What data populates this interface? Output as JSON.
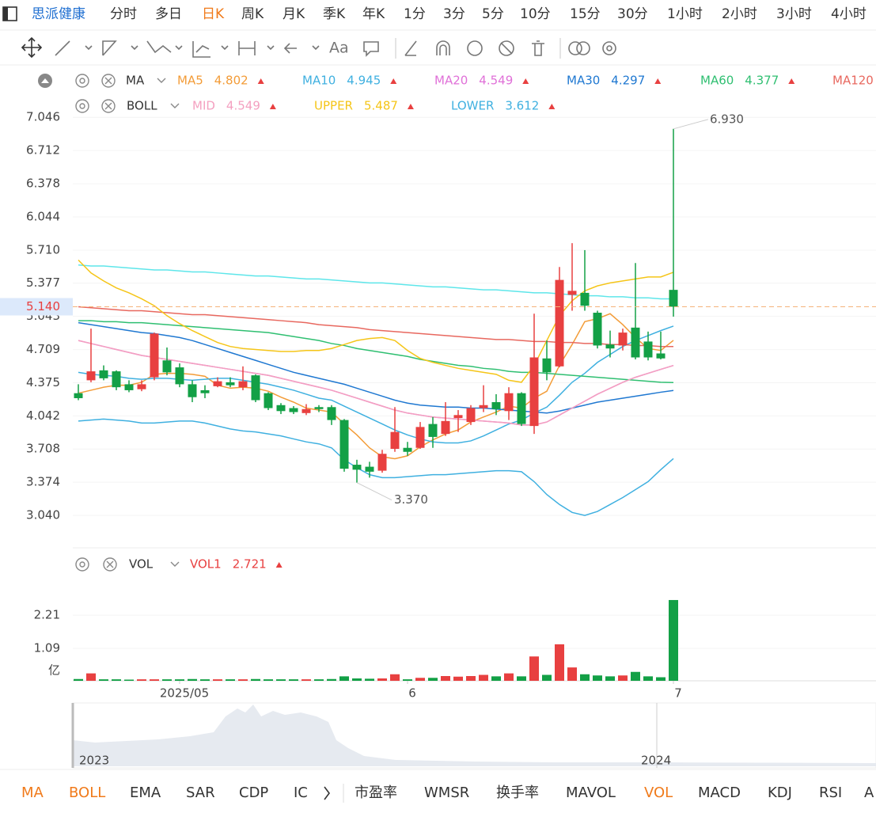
{
  "nav": {
    "title": "思派健康",
    "tabs": [
      "分时",
      "多日",
      "日K",
      "周K",
      "月K",
      "季K",
      "年K",
      "1分",
      "3分",
      "5分",
      "10分",
      "15分",
      "30分",
      "1小时",
      "2小时",
      "3小时",
      "4小时"
    ],
    "active": 2
  },
  "toolbar_text": "Aa",
  "indicator_tabs": {
    "items": [
      "MA",
      "BOLL",
      "EMA",
      "SAR",
      "CDP",
      "IC",
      "市盈率",
      "WMSR",
      "换手率",
      "MAVOL",
      "VOL",
      "MACD",
      "KDJ",
      "RSI",
      "A"
    ],
    "active": [
      0,
      1,
      10
    ]
  },
  "navigator": {
    "labels": [
      "2023",
      "2024"
    ]
  },
  "chart_data": [
    {
      "type": "candlestick",
      "up_color": "#e84040",
      "down_color": "#13a046",
      "ylim": [
        2.73,
        7.51
      ],
      "yticks": [
        {
          "value": 3.04,
          "label": "3.040"
        },
        3.374,
        3.708,
        4.042,
        4.375,
        4.709,
        5.043,
        5.377,
        {
          "value": 5.71,
          "label": "5.710"
        },
        6.044,
        6.378,
        6.712,
        7.046
      ],
      "grid": true,
      "open": [
        4.27,
        4.4,
        4.5,
        4.49,
        4.36,
        4.31,
        4.43,
        4.6,
        4.53,
        4.36,
        4.3,
        4.34,
        4.38,
        4.33,
        4.45,
        4.27,
        4.15,
        4.12,
        4.07,
        4.13,
        4.13,
        4.0,
        3.55,
        3.53,
        3.49,
        3.71,
        3.72,
        3.72,
        3.96,
        3.86,
        4.02,
        3.98,
        4.12,
        4.18,
        4.09,
        4.27,
        3.94,
        4.62,
        4.54,
        5.26,
        5.28,
        5.08,
        4.76,
        4.75,
        4.93,
        4.79,
        4.67,
        5.31
      ],
      "high": [
        4.36,
        4.92,
        4.55,
        4.5,
        4.4,
        4.4,
        4.88,
        4.73,
        4.57,
        4.4,
        4.35,
        4.43,
        4.43,
        4.54,
        4.46,
        4.28,
        4.17,
        4.14,
        4.16,
        4.15,
        4.15,
        4.01,
        3.6,
        3.58,
        3.7,
        4.13,
        3.78,
        3.98,
        4.03,
        4.18,
        4.1,
        4.15,
        4.35,
        4.26,
        4.33,
        4.28,
        5.07,
        4.8,
        5.54,
        5.78,
        5.71,
        5.1,
        4.9,
        4.92,
        5.58,
        4.89,
        4.89,
        6.93
      ],
      "low": [
        4.2,
        4.38,
        4.4,
        4.3,
        4.28,
        4.29,
        4.4,
        4.45,
        4.33,
        4.18,
        4.22,
        4.33,
        4.33,
        4.3,
        4.18,
        4.1,
        4.06,
        4.06,
        4.05,
        4.08,
        3.95,
        3.48,
        3.37,
        3.42,
        3.47,
        3.68,
        3.64,
        3.71,
        3.72,
        3.84,
        3.88,
        3.95,
        4.08,
        4.05,
        4.0,
        3.94,
        3.86,
        4.4,
        4.53,
        5.1,
        5.1,
        4.72,
        4.63,
        4.7,
        4.61,
        4.6,
        4.61,
        5.04
      ],
      "close": [
        4.22,
        4.49,
        4.42,
        4.33,
        4.3,
        4.36,
        4.87,
        4.48,
        4.36,
        4.23,
        4.27,
        4.39,
        4.35,
        4.39,
        4.2,
        4.12,
        4.09,
        4.08,
        4.11,
        4.11,
        4.0,
        3.51,
        3.5,
        3.48,
        3.66,
        3.88,
        3.68,
        3.93,
        3.83,
        3.99,
        4.05,
        4.12,
        4.15,
        4.11,
        4.27,
        3.96,
        4.63,
        4.48,
        5.41,
        5.3,
        5.15,
        4.75,
        4.72,
        4.88,
        4.63,
        4.63,
        4.62,
        5.14
      ],
      "high_label": {
        "value": 6.93,
        "label": "6.930"
      },
      "low_label": {
        "value": 3.37,
        "label": "3.370"
      },
      "last_price": {
        "value": 5.14,
        "label": "5.140"
      },
      "indicators": [
        {
          "name": "MA",
          "series": [
            {
              "name": "MA5",
              "color": "#f39c38",
              "values": [
                4.27,
                4.3,
                4.33,
                4.35,
                4.35,
                4.38,
                4.46,
                4.47,
                4.47,
                4.46,
                4.44,
                4.35,
                4.32,
                4.33,
                4.32,
                4.29,
                4.23,
                4.18,
                4.12,
                4.1,
                4.08,
                3.96,
                3.85,
                3.72,
                3.63,
                3.61,
                3.64,
                3.73,
                3.8,
                3.86,
                3.9,
                3.98,
                4.03,
                4.08,
                4.14,
                4.12,
                4.22,
                4.29,
                4.55,
                4.76,
                4.99,
                5.02,
                5.07,
                4.96,
                4.83,
                4.72,
                4.7,
                4.802
              ]
            },
            {
              "name": "MA10",
              "color": "#3fb0e0",
              "values": [
                4.48,
                4.46,
                4.45,
                4.44,
                4.42,
                4.41,
                4.42,
                4.42,
                4.41,
                4.4,
                4.41,
                4.42,
                4.42,
                4.4,
                4.38,
                4.36,
                4.33,
                4.3,
                4.26,
                4.22,
                4.2,
                4.14,
                4.08,
                4.02,
                3.96,
                3.9,
                3.85,
                3.81,
                3.78,
                3.77,
                3.77,
                3.79,
                3.84,
                3.9,
                3.96,
                4.0,
                4.07,
                4.13,
                4.25,
                4.38,
                4.47,
                4.58,
                4.66,
                4.74,
                4.8,
                4.85,
                4.9,
                4.945
              ]
            },
            {
              "name": "MA20",
              "color": "#e070d8",
              "values": [
                4.8,
                4.77,
                4.74,
                4.71,
                4.68,
                4.65,
                4.63,
                4.61,
                4.59,
                4.57,
                4.55,
                4.53,
                4.51,
                4.49,
                4.47,
                4.45,
                4.42,
                4.39,
                4.36,
                4.33,
                4.3,
                4.26,
                4.22,
                4.18,
                4.14,
                4.1,
                4.07,
                4.05,
                4.03,
                4.02,
                4.01,
                4.0,
                3.99,
                3.98,
                3.97,
                3.95,
                3.95,
                3.98,
                4.05,
                4.12,
                4.19,
                4.26,
                4.32,
                4.38,
                4.43,
                4.47,
                4.51,
                4.549
              ]
            },
            {
              "name": "MA30",
              "color": "#1f78d1",
              "values": [
                4.98,
                4.96,
                4.94,
                4.92,
                4.9,
                4.88,
                4.87,
                4.85,
                4.83,
                4.8,
                4.76,
                4.72,
                4.68,
                4.64,
                4.6,
                4.56,
                4.52,
                4.48,
                4.45,
                4.42,
                4.39,
                4.36,
                4.32,
                4.28,
                4.24,
                4.2,
                4.17,
                4.15,
                4.14,
                4.13,
                4.13,
                4.12,
                4.12,
                4.11,
                4.1,
                4.09,
                4.08,
                4.07,
                4.09,
                4.12,
                4.15,
                4.18,
                4.2,
                4.22,
                4.24,
                4.26,
                4.28,
                4.297
              ]
            },
            {
              "name": "MA60",
              "color": "#2fbf71",
              "values": [
                5.0,
                5.0,
                4.99,
                4.99,
                4.98,
                4.98,
                4.97,
                4.96,
                4.95,
                4.94,
                4.93,
                4.92,
                4.91,
                4.9,
                4.89,
                4.88,
                4.86,
                4.84,
                4.82,
                4.8,
                4.77,
                4.75,
                4.72,
                4.7,
                4.68,
                4.66,
                4.64,
                4.61,
                4.59,
                4.57,
                4.55,
                4.54,
                4.52,
                4.51,
                4.49,
                4.48,
                4.48,
                4.47,
                4.46,
                4.45,
                4.44,
                4.43,
                4.42,
                4.41,
                4.4,
                4.39,
                4.38,
                4.377
              ]
            },
            {
              "name": "MA120",
              "color": "#e8685f",
              "values": [
                5.14,
                5.13,
                5.12,
                5.11,
                5.1,
                5.1,
                5.09,
                5.08,
                5.07,
                5.06,
                5.06,
                5.05,
                5.04,
                5.03,
                5.02,
                5.01,
                5.0,
                4.99,
                4.98,
                4.96,
                4.95,
                4.94,
                4.93,
                4.91,
                4.9,
                4.89,
                4.88,
                4.87,
                4.86,
                4.85,
                4.84,
                4.83,
                4.82,
                4.81,
                4.81,
                4.8,
                4.79,
                4.79,
                4.78,
                4.78,
                4.77,
                4.77,
                4.76,
                4.76,
                4.75,
                4.75,
                4.74,
                4.74
              ]
            },
            {
              "color": "#5ee6ea",
              "values": [
                5.56,
                5.55,
                5.55,
                5.54,
                5.53,
                5.52,
                5.51,
                5.51,
                5.5,
                5.49,
                5.49,
                5.48,
                5.47,
                5.46,
                5.45,
                5.45,
                5.44,
                5.43,
                5.42,
                5.42,
                5.41,
                5.4,
                5.39,
                5.38,
                5.38,
                5.37,
                5.36,
                5.35,
                5.34,
                5.34,
                5.33,
                5.32,
                5.31,
                5.31,
                5.3,
                5.29,
                5.28,
                5.28,
                5.27,
                5.26,
                5.25,
                5.25,
                5.24,
                5.24,
                5.23,
                5.23,
                5.22,
                5.22
              ]
            }
          ]
        },
        {
          "name": "BOLL",
          "series": [
            {
              "name": "MID",
              "color": "#f4a0c0",
              "values": [
                4.8,
                4.77,
                4.74,
                4.71,
                4.68,
                4.65,
                4.63,
                4.61,
                4.59,
                4.57,
                4.55,
                4.53,
                4.51,
                4.49,
                4.47,
                4.45,
                4.42,
                4.39,
                4.36,
                4.33,
                4.3,
                4.26,
                4.22,
                4.18,
                4.14,
                4.1,
                4.07,
                4.05,
                4.03,
                4.02,
                4.01,
                4.0,
                3.99,
                3.98,
                3.97,
                3.95,
                3.95,
                3.98,
                4.05,
                4.12,
                4.19,
                4.26,
                4.32,
                4.38,
                4.43,
                4.47,
                4.51,
                4.549
              ]
            },
            {
              "name": "UPPER",
              "color": "#f5c518",
              "values": [
                5.61,
                5.48,
                5.4,
                5.33,
                5.28,
                5.22,
                5.15,
                5.05,
                4.97,
                4.9,
                4.84,
                4.78,
                4.74,
                4.72,
                4.71,
                4.7,
                4.69,
                4.69,
                4.7,
                4.7,
                4.72,
                4.76,
                4.8,
                4.82,
                4.83,
                4.8,
                4.7,
                4.62,
                4.58,
                4.55,
                4.52,
                4.5,
                4.48,
                4.46,
                4.4,
                4.38,
                4.55,
                4.8,
                5.05,
                5.2,
                5.3,
                5.35,
                5.38,
                5.4,
                5.42,
                5.44,
                5.44,
                5.487
              ]
            },
            {
              "name": "LOWER",
              "color": "#3fb0e0",
              "values": [
                3.99,
                4.0,
                4.01,
                4.0,
                3.99,
                3.97,
                3.97,
                3.98,
                3.99,
                3.99,
                3.97,
                3.94,
                3.91,
                3.89,
                3.88,
                3.86,
                3.84,
                3.81,
                3.78,
                3.76,
                3.72,
                3.6,
                3.52,
                3.45,
                3.42,
                3.42,
                3.43,
                3.44,
                3.45,
                3.45,
                3.46,
                3.47,
                3.48,
                3.49,
                3.49,
                3.48,
                3.38,
                3.25,
                3.15,
                3.07,
                3.04,
                3.08,
                3.15,
                3.22,
                3.3,
                3.38,
                3.5,
                3.612
              ]
            }
          ]
        }
      ]
    },
    {
      "type": "volume",
      "name": "VOL",
      "series_name": "VOL1",
      "legend_color": "#e84040",
      "categories": [
        null,
        null,
        null,
        null,
        null,
        null,
        null,
        null,
        "2025/05",
        null,
        null,
        null,
        null,
        null,
        null,
        null,
        null,
        null,
        null,
        null,
        null,
        null,
        null,
        null,
        null,
        null,
        "6",
        null,
        null,
        null,
        null,
        null,
        null,
        null,
        null,
        null,
        null,
        null,
        null,
        null,
        null,
        null,
        null,
        null,
        null,
        null,
        null,
        "7"
      ],
      "values": [
        0.06,
        0.25,
        0.05,
        0.05,
        0.04,
        0.05,
        0.05,
        0.05,
        0.05,
        0.06,
        0.05,
        0.05,
        0.05,
        0.05,
        0.06,
        0.05,
        0.05,
        0.05,
        0.05,
        0.05,
        0.06,
        0.15,
        0.08,
        0.07,
        0.08,
        0.22,
        0.05,
        0.1,
        0.1,
        0.16,
        0.14,
        0.16,
        0.2,
        0.15,
        0.25,
        0.15,
        0.82,
        0.2,
        1.23,
        0.45,
        0.22,
        0.18,
        0.15,
        0.18,
        0.3,
        0.15,
        0.12,
        2.721
      ],
      "ylim": [
        0,
        3.2
      ],
      "yticks": [
        1.09,
        2.21
      ],
      "unit": "亿"
    }
  ]
}
